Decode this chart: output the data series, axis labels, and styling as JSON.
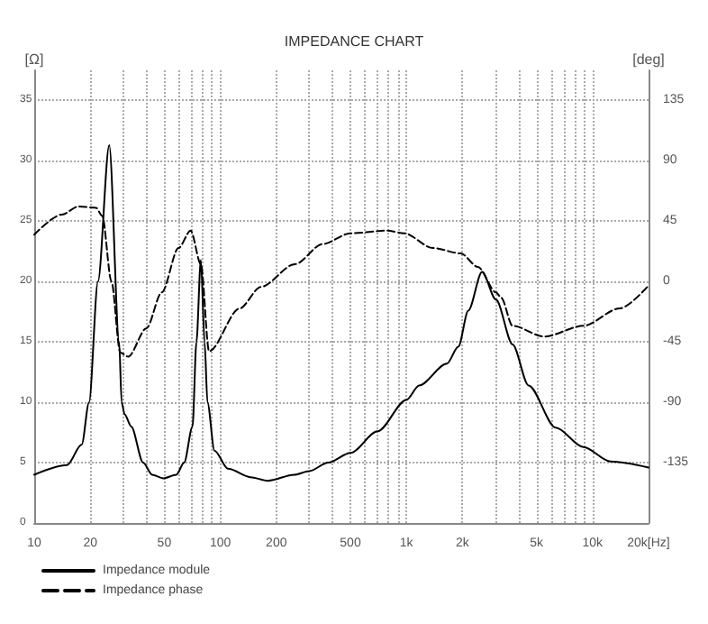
{
  "chart_data": {
    "type": "line",
    "title": "IMPEDANCE CHART",
    "ylabel": "[Ω]",
    "y2label": "[deg]",
    "xlim": [
      10,
      20000
    ],
    "xticks": [
      10,
      20,
      {
        "value": 30,
        "label": null
      },
      {
        "value": 40,
        "label": null
      },
      50,
      {
        "value": 60,
        "label": null
      },
      {
        "value": 70,
        "label": null
      },
      {
        "value": 80,
        "label": null
      },
      {
        "value": 90,
        "label": null
      },
      100,
      200,
      {
        "value": 300,
        "label": null
      },
      {
        "value": 400,
        "label": null
      },
      500,
      {
        "value": 600,
        "label": null
      },
      {
        "value": 700,
        "label": null
      },
      {
        "value": 800,
        "label": null
      },
      {
        "value": 900,
        "label": null
      },
      {
        "value": 1000,
        "label": "1k"
      },
      {
        "value": 2000,
        "label": "2k"
      },
      {
        "value": 3000,
        "label": null
      },
      {
        "value": 4000,
        "label": null
      },
      {
        "value": 5000,
        "label": "5k"
      },
      {
        "value": 6000,
        "label": null
      },
      {
        "value": 7000,
        "label": null
      },
      {
        "value": 8000,
        "label": null
      },
      {
        "value": 9000,
        "label": null
      },
      {
        "value": 10000,
        "label": "10k"
      },
      {
        "value": 20000,
        "label": "20k[Hz]"
      }
    ],
    "ylim": [
      0,
      37.5
    ],
    "yticks": [
      0,
      5,
      10,
      15,
      20,
      25,
      30,
      35
    ],
    "y2lim": [
      -180,
      157.5
    ],
    "y2ticks": [
      -135,
      -90,
      -45,
      0,
      45,
      90,
      135
    ],
    "log": "x",
    "grid": true,
    "legend": "bottom left",
    "marker": "none",
    "series": [
      {
        "name": "Impedance module",
        "color": "#000000",
        "line_style": "solid",
        "x": [
          10,
          15,
          18,
          19.7,
          22,
          25.3,
          28.6,
          29.5,
          30.6,
          33.2,
          38.5,
          43,
          49.3,
          58,
          63.9,
          70.9,
          74.4,
          78.6,
          82.3,
          85.3,
          93,
          110,
          145,
          180,
          250,
          300,
          380,
          500,
          700,
          1000,
          1170,
          1650,
          1900,
          2150,
          2550,
          3030,
          3720,
          4530,
          6350,
          8930,
          12500,
          20000
        ],
        "values": [
          4.0,
          4.8,
          6.5,
          10,
          20,
          31.3,
          15,
          10,
          9,
          8,
          5,
          4,
          3.7,
          4,
          5,
          8,
          15,
          21.8,
          15,
          10,
          6,
          4.5,
          3.8,
          3.5,
          4,
          4.3,
          5,
          5.8,
          7.6,
          10.2,
          11.4,
          13.2,
          14.6,
          17.6,
          20.8,
          18.5,
          14.8,
          11.4,
          7.9,
          6.3,
          5.1,
          4.6
        ]
      },
      {
        "name": "Impedance phase",
        "color": "#000000",
        "line_style": "dashed",
        "axis": "y2",
        "x": [
          10,
          14.1,
          17.3,
          21.5,
          23.2,
          26,
          29,
          32,
          40,
          48.5,
          59.6,
          69.3,
          78.6,
          87,
          127,
          165,
          252,
          355,
          500,
          790,
          970,
          1390,
          1960,
          2420,
          3030,
          3230,
          3720,
          5500,
          8930,
          14000,
          20000
        ],
        "values": [
          35,
          50,
          56,
          55,
          49,
          0,
          -53,
          -56,
          -35,
          -8,
          25,
          38,
          13,
          -52,
          -20,
          -4,
          13,
          28,
          36,
          38,
          36,
          25,
          21,
          11,
          -8,
          -12,
          -33,
          -41,
          -33,
          -20,
          -3
        ]
      }
    ]
  }
}
